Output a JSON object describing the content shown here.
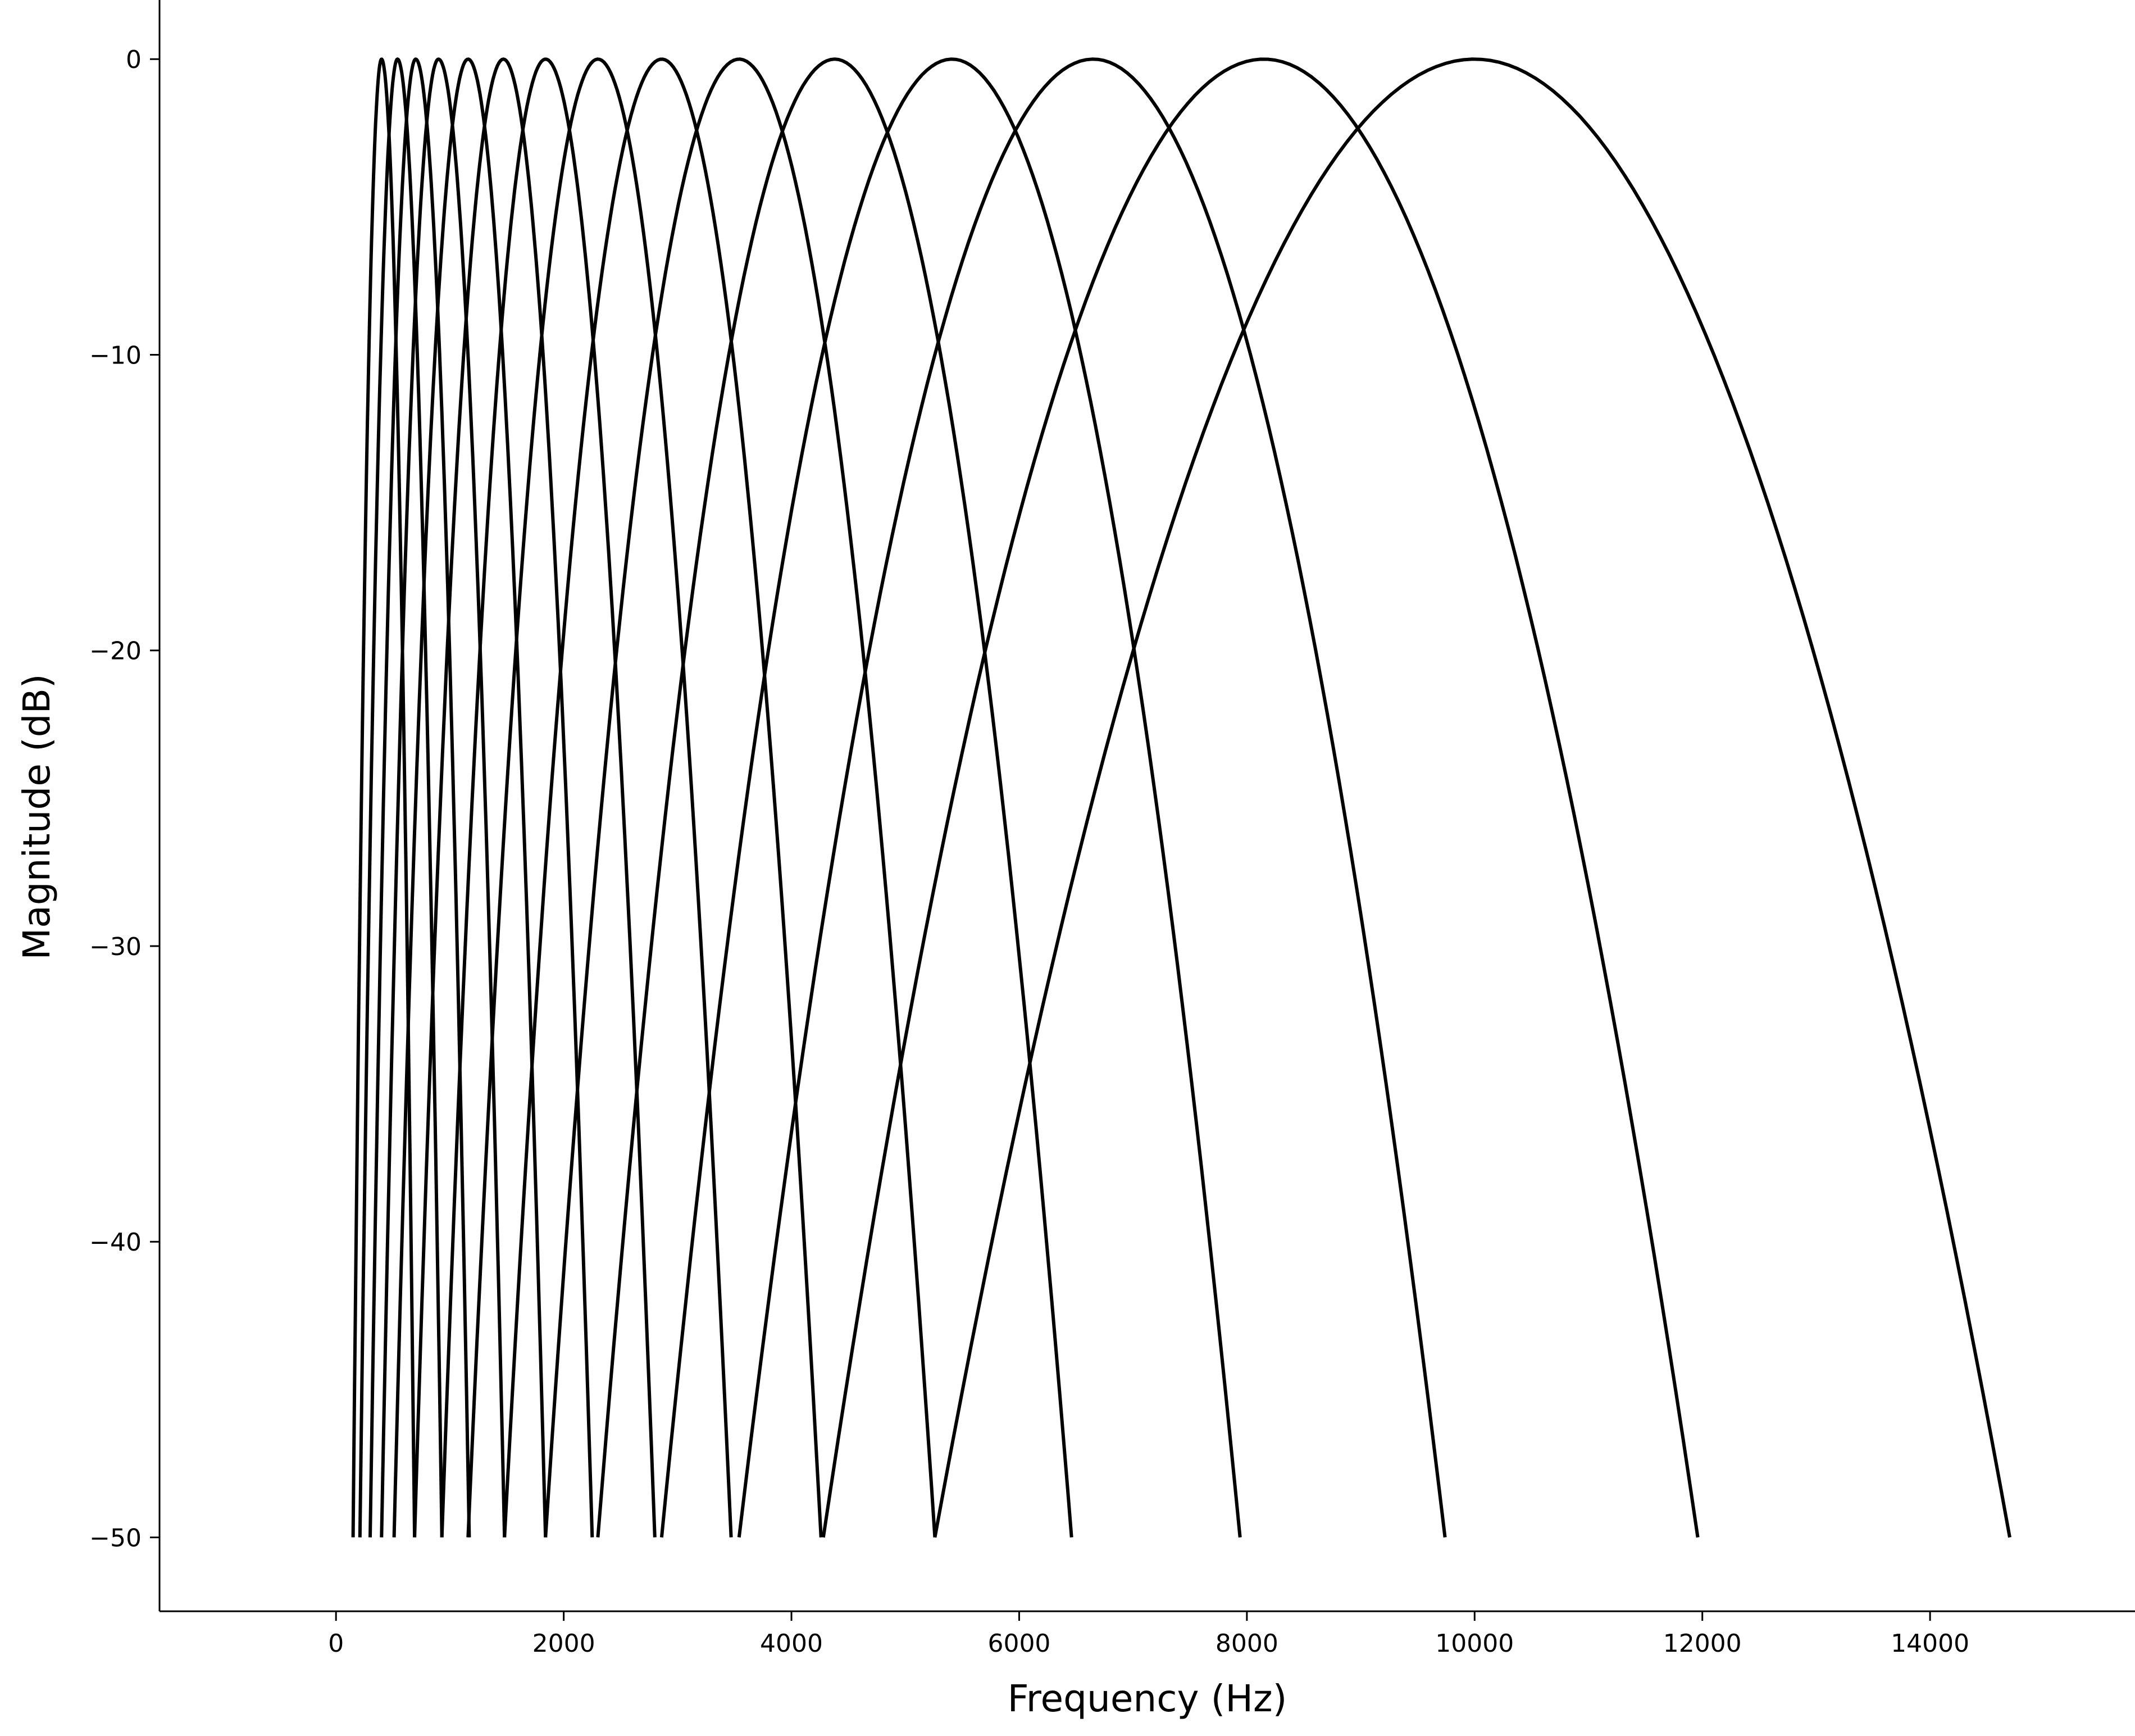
{
  "chart_data": {
    "type": "line",
    "title": "",
    "xlabel": "Frequency (Hz)",
    "ylabel": "Magnitude (dB)",
    "xlim": [
      -1550,
      15800
    ],
    "ylim": [
      -52.5,
      2
    ],
    "xticks": [
      0,
      2000,
      4000,
      6000,
      8000,
      10000,
      12000,
      14000
    ],
    "xtick_labels": [
      "0",
      "2000",
      "4000",
      "6000",
      "8000",
      "10000",
      "12000",
      "14000"
    ],
    "yticks": [
      0,
      -10,
      -20,
      -30,
      -40,
      -50
    ],
    "ytick_labels": [
      "0",
      "−10",
      "−20",
      "−30",
      "−40",
      "−50"
    ],
    "grid": false,
    "legend": "none",
    "line_color": "#000000",
    "floor_db": -50,
    "series": [
      {
        "center": 400,
        "x": [
          150,
          400,
          690
        ],
        "y": [
          -50,
          0,
          -50
        ]
      },
      {
        "center": 540,
        "x": [
          210,
          540,
          930
        ],
        "y": [
          -50,
          0,
          -50
        ]
      },
      {
        "center": 700,
        "x": [
          300,
          700,
          1170
        ],
        "y": [
          -50,
          0,
          -50
        ]
      },
      {
        "center": 900,
        "x": [
          400,
          900,
          1480
        ],
        "y": [
          -50,
          0,
          -50
        ]
      },
      {
        "center": 1160,
        "x": [
          510,
          1160,
          1840
        ],
        "y": [
          -50,
          0,
          -50
        ]
      },
      {
        "center": 1470,
        "x": [
          690,
          1470,
          2250
        ],
        "y": [
          -50,
          0,
          -50
        ]
      },
      {
        "center": 1840,
        "x": [
          930,
          1840,
          2800
        ],
        "y": [
          -50,
          0,
          -50
        ]
      },
      {
        "center": 2300,
        "x": [
          1160,
          2300,
          3470
        ],
        "y": [
          -50,
          0,
          -50
        ]
      },
      {
        "center": 2860,
        "x": [
          1480,
          2860,
          4260
        ],
        "y": [
          -50,
          0,
          -50
        ]
      },
      {
        "center": 3540,
        "x": [
          1840,
          3540,
          5260
        ],
        "y": [
          -50,
          0,
          -50
        ]
      },
      {
        "center": 4380,
        "x": [
          2300,
          4380,
          6460
        ],
        "y": [
          -50,
          0,
          -50
        ]
      },
      {
        "center": 5410,
        "x": [
          2860,
          5410,
          7940
        ],
        "y": [
          -50,
          0,
          -50
        ]
      },
      {
        "center": 6650,
        "x": [
          3540,
          6650,
          9740
        ],
        "y": [
          -50,
          0,
          -50
        ]
      },
      {
        "center": 8150,
        "x": [
          4280,
          8150,
          11960
        ],
        "y": [
          -50,
          0,
          -50
        ]
      },
      {
        "center": 10000,
        "x": [
          5260,
          10000,
          14700
        ],
        "y": [
          -50,
          0,
          -50
        ]
      }
    ]
  }
}
